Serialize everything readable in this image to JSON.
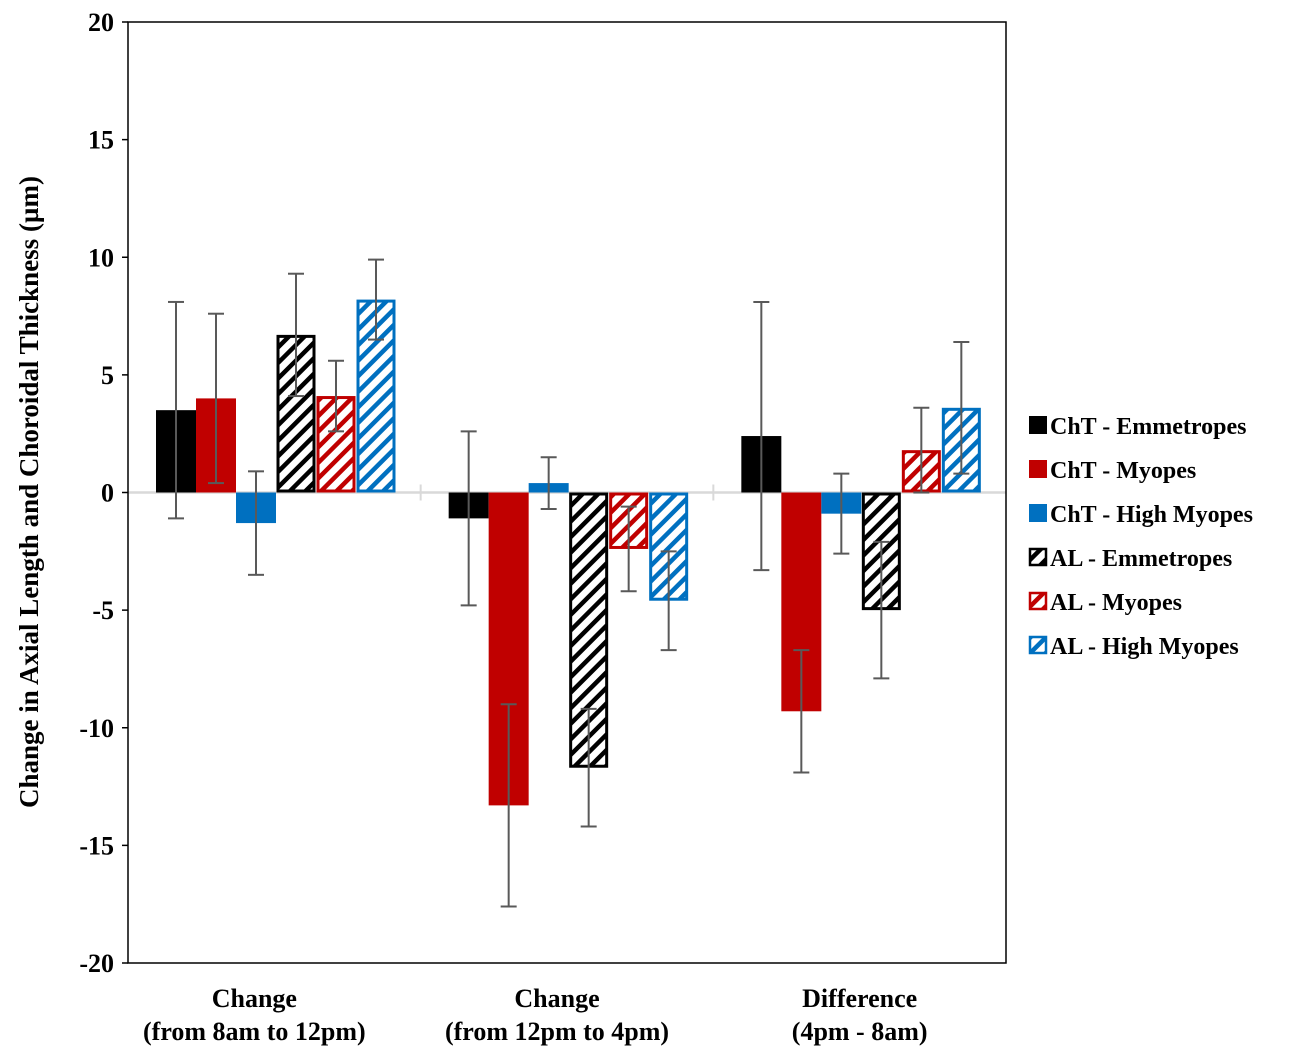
{
  "chart_data": {
    "type": "bar",
    "title": "",
    "xlabel": "",
    "ylabel": "Change in Axial Length and Choroidal Thickness (µm)",
    "ylim": [
      -20,
      20
    ],
    "yticks": [
      20,
      15,
      10,
      5,
      0,
      -5,
      -10,
      -15,
      -20
    ],
    "ytick_labels": [
      "20",
      "15",
      "10",
      "5",
      "0",
      "-5",
      "-10",
      "-15",
      "-20"
    ],
    "grid": false,
    "legend_position": "right",
    "categories": [
      [
        "Change",
        "(from 8am to 12pm)"
      ],
      [
        "Change",
        "(from 12pm to 4pm)"
      ],
      [
        "Difference",
        "(4pm - 8am)"
      ]
    ],
    "series": [
      {
        "name": "ChT - Emmetropes",
        "color": "#000000",
        "pattern": "solid",
        "values": [
          3.5,
          -1.1,
          2.4
        ],
        "errors": [
          4.6,
          3.7,
          5.7
        ]
      },
      {
        "name": "ChT - Myopes",
        "color": "#c00000",
        "pattern": "solid",
        "values": [
          4.0,
          -13.3,
          -9.3
        ],
        "errors": [
          3.6,
          4.3,
          2.6
        ]
      },
      {
        "name": "ChT - High Myopes",
        "color": "#0070c0",
        "pattern": "solid",
        "values": [
          -1.3,
          0.4,
          -0.9
        ],
        "errors": [
          2.2,
          1.1,
          1.7
        ]
      },
      {
        "name": "AL - Emmetropes",
        "color": "#000000",
        "pattern": "hatched",
        "values": [
          6.7,
          -11.7,
          -5.0
        ],
        "errors": [
          2.6,
          2.5,
          2.9
        ]
      },
      {
        "name": "AL - Myopes",
        "color": "#c00000",
        "pattern": "hatched",
        "values": [
          4.1,
          -2.4,
          1.8
        ],
        "errors": [
          1.5,
          1.8,
          1.8
        ]
      },
      {
        "name": "AL - High Myopes",
        "color": "#0070c0",
        "pattern": "hatched",
        "values": [
          8.2,
          -4.6,
          3.6
        ],
        "errors": [
          1.7,
          2.1,
          2.8
        ]
      }
    ]
  }
}
